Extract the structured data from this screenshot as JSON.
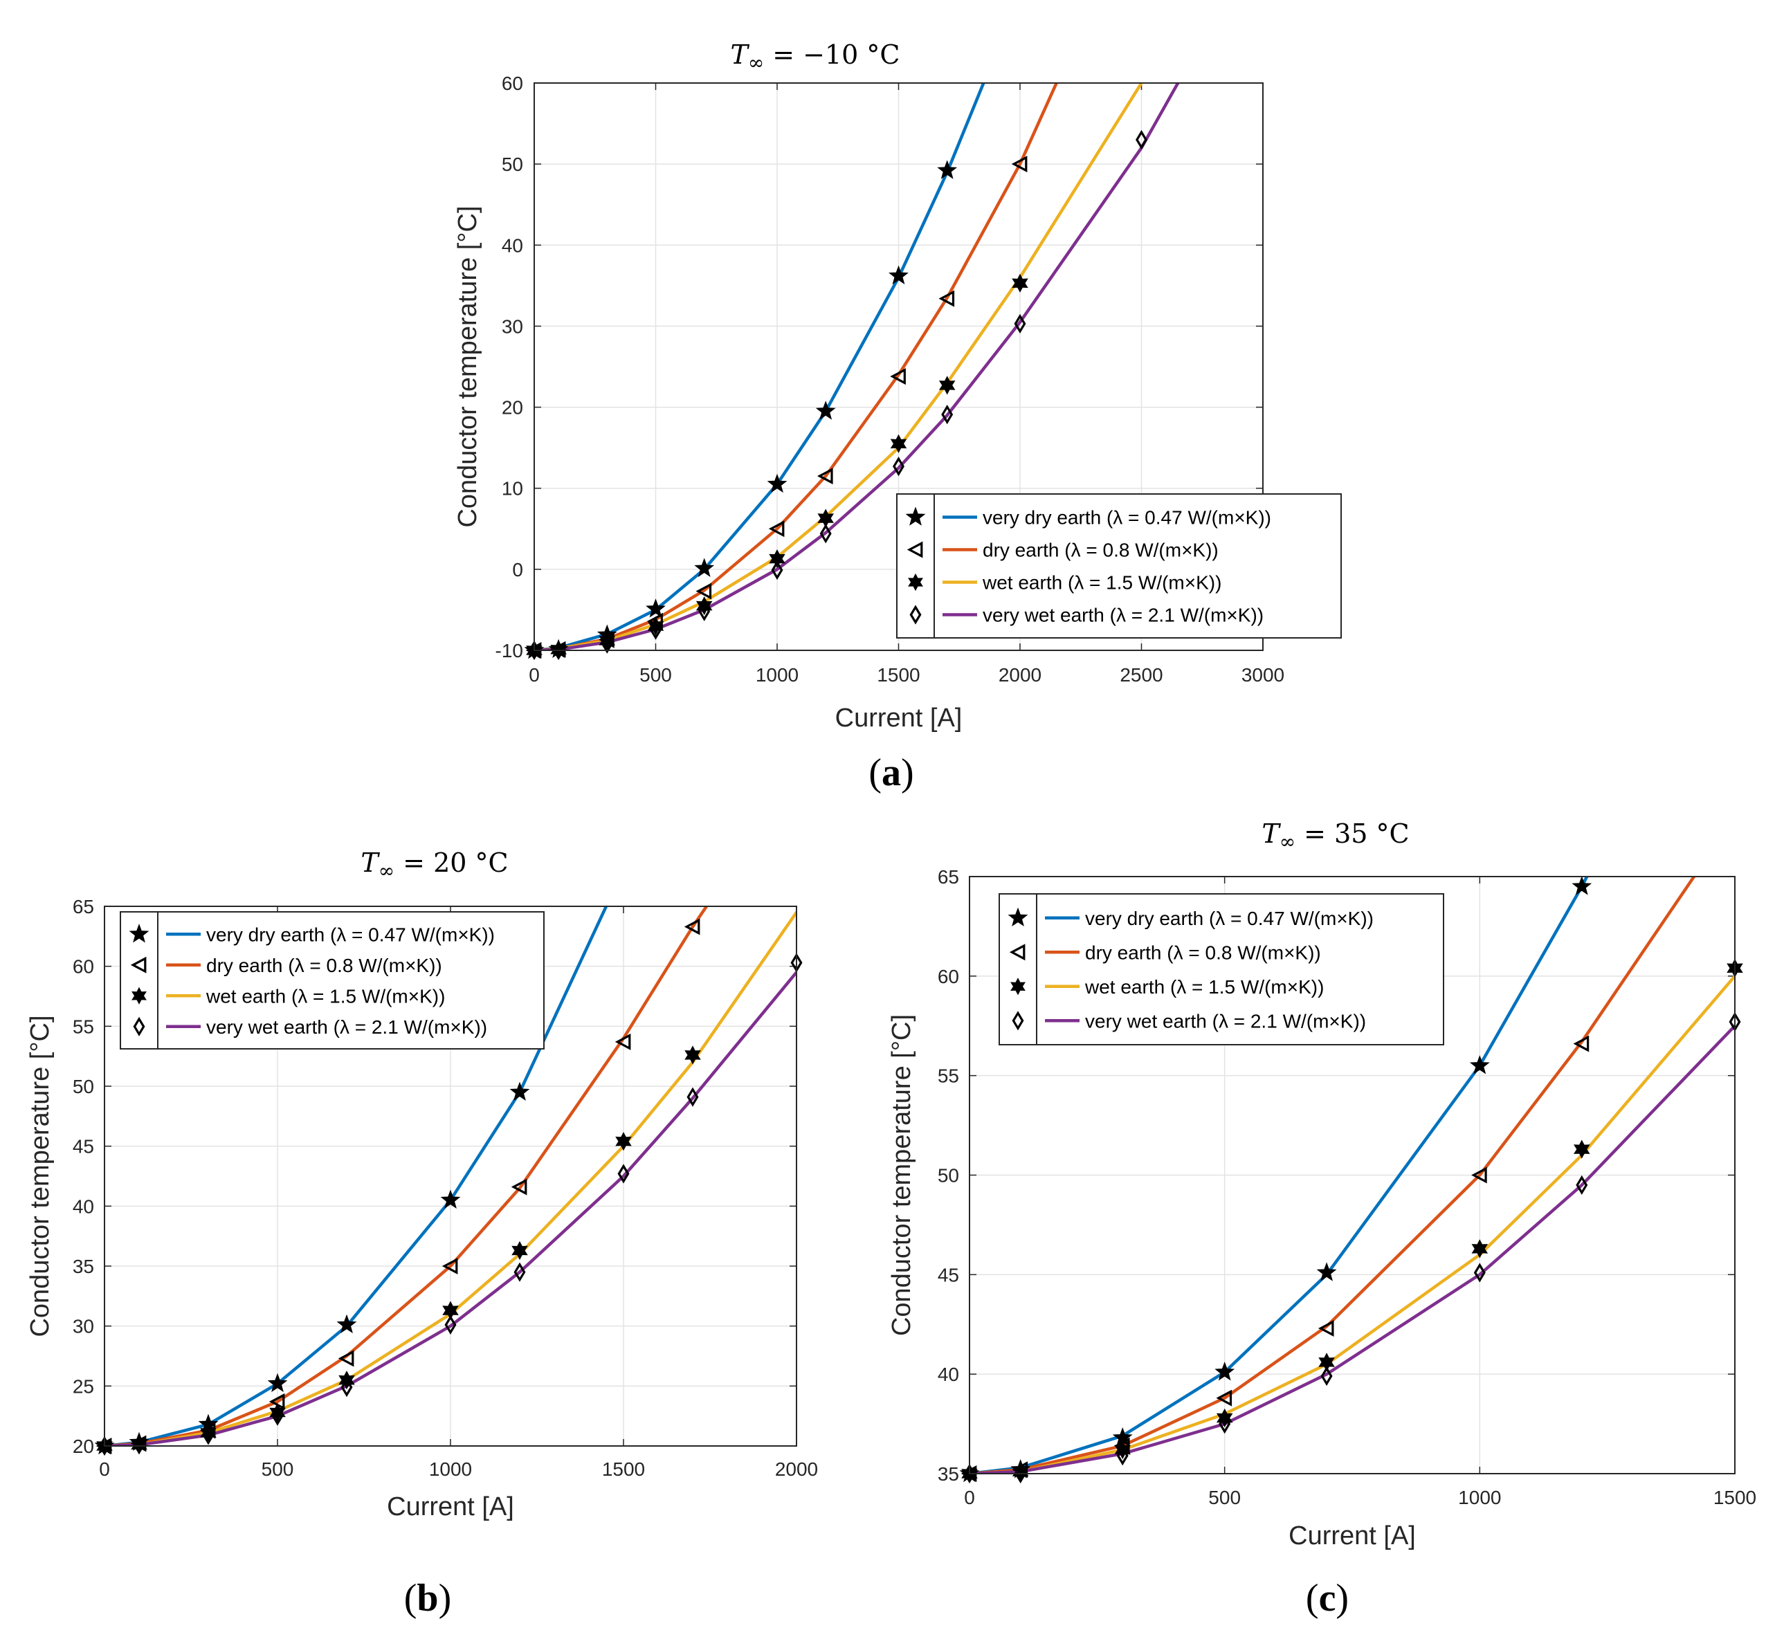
{
  "chart_data": [
    {
      "type": "line",
      "caption_open": "(",
      "caption_letter": "a",
      "caption_close": ")",
      "title_prefix": "T",
      "title_sub": "∞",
      "title_value": " = −10 °C",
      "xlabel": "Current [A]",
      "ylabel": "Conductor temperature [°C]",
      "xlim": [
        0,
        3000
      ],
      "ylim": [
        -10,
        60
      ],
      "xticks": [
        0,
        500,
        1000,
        1500,
        2000,
        2500,
        3000
      ],
      "yticks": [
        -10,
        0,
        10,
        20,
        30,
        40,
        50,
        60
      ],
      "xtick_labels": [
        "0",
        "500",
        "1000",
        "1500",
        "2000",
        "2500",
        "3000"
      ],
      "ytick_labels": [
        "-10",
        "0",
        "10",
        "20",
        "30",
        "40",
        "50",
        "60"
      ],
      "grid": true,
      "legend_position": "bottom-right",
      "series": [
        {
          "name": "very dry earth (λ = 0.47 W/(m×K))",
          "color": "#0072BD",
          "marker": "star5",
          "line_x": [
            0,
            100,
            300,
            500,
            700,
            1000,
            1200,
            1500,
            1700,
            1850
          ],
          "line_y": [
            -10,
            -9.7,
            -8,
            -5,
            0,
            10.5,
            19.5,
            36,
            49,
            60
          ],
          "marker_x": [
            0,
            100,
            300,
            500,
            700,
            1000,
            1200,
            1500,
            1700
          ],
          "marker_y": [
            -10,
            -9.9,
            -8.1,
            -4.9,
            0.1,
            10.5,
            19.5,
            36.2,
            49.2
          ]
        },
        {
          "name": "dry earth (λ = 0.8 W/(m×K))",
          "color": "#D95319",
          "marker": "triangle-left",
          "line_x": [
            0,
            100,
            300,
            500,
            700,
            1000,
            1200,
            1500,
            1700,
            2000,
            2150
          ],
          "line_y": [
            -10,
            -9.8,
            -8.6,
            -6.2,
            -2.6,
            5,
            11.5,
            24,
            33.5,
            50,
            60
          ],
          "marker_x": [
            0,
            100,
            300,
            500,
            700,
            1000,
            1200,
            1500,
            1700,
            2000
          ],
          "marker_y": [
            -10,
            -9.9,
            -8.7,
            -6.4,
            -2.7,
            5,
            11.5,
            23.8,
            33.4,
            50
          ]
        },
        {
          "name": "wet earth (λ = 1.5 W/(m×K))",
          "color": "#EDB120",
          "marker": "star6",
          "line_x": [
            0,
            100,
            300,
            500,
            700,
            1000,
            1200,
            1500,
            1700,
            2000,
            2500
          ],
          "line_y": [
            -10,
            -9.8,
            -8.8,
            -6.8,
            -4,
            1.5,
            6.5,
            15,
            23,
            36,
            60
          ],
          "marker_x": [
            0,
            100,
            300,
            500,
            700,
            1000,
            1200,
            1500,
            1700,
            2000
          ],
          "marker_y": [
            -10,
            -9.9,
            -8.8,
            -7,
            -4.5,
            1.3,
            6.3,
            15.5,
            22.7,
            35.3
          ]
        },
        {
          "name": "very wet earth (λ = 2.1 W/(m×K))",
          "color": "#7E2F8E",
          "marker": "diamond",
          "line_x": [
            0,
            100,
            300,
            500,
            700,
            1000,
            1200,
            1500,
            1700,
            2000,
            2500,
            2650
          ],
          "line_y": [
            -10,
            -9.9,
            -9,
            -7.4,
            -5,
            0,
            4.5,
            12.5,
            19,
            30.5,
            52,
            60
          ],
          "marker_x": [
            0,
            100,
            300,
            500,
            700,
            1000,
            1200,
            1500,
            1700,
            2000,
            2500
          ],
          "marker_y": [
            -10,
            -10,
            -9.2,
            -7.5,
            -5.2,
            -0.1,
            4.4,
            12.7,
            19.1,
            30.3,
            53
          ]
        }
      ]
    },
    {
      "type": "line",
      "caption_open": "(",
      "caption_letter": "b",
      "caption_close": ")",
      "title_prefix": "T",
      "title_sub": "∞",
      "title_value": " = 20 °C",
      "xlabel": "Current [A]",
      "ylabel": "Conductor temperature [°C]",
      "xlim": [
        0,
        2000
      ],
      "ylim": [
        20,
        65
      ],
      "xticks": [
        0,
        500,
        1000,
        1500,
        2000
      ],
      "yticks": [
        20,
        25,
        30,
        35,
        40,
        45,
        50,
        55,
        60,
        65
      ],
      "xtick_labels": [
        "0",
        "500",
        "1000",
        "1500",
        "2000"
      ],
      "ytick_labels": [
        "20",
        "25",
        "30",
        "35",
        "40",
        "45",
        "50",
        "55",
        "60",
        "65"
      ],
      "grid": true,
      "legend_position": "top-left",
      "series": [
        {
          "name": "very dry earth (λ = 0.47 W/(m×K))",
          "color": "#0072BD",
          "marker": "star5",
          "line_x": [
            0,
            100,
            300,
            500,
            700,
            1000,
            1200,
            1450
          ],
          "line_y": [
            20,
            20.3,
            21.8,
            25.2,
            30,
            40.5,
            49.5,
            65
          ],
          "marker_x": [
            0,
            100,
            300,
            500,
            700,
            1000,
            1200
          ],
          "marker_y": [
            20,
            20.3,
            21.8,
            25.2,
            30.1,
            40.5,
            49.5
          ]
        },
        {
          "name": "dry earth (λ = 0.8 W/(m×K))",
          "color": "#D95319",
          "marker": "triangle-left",
          "line_x": [
            0,
            100,
            300,
            500,
            700,
            1000,
            1200,
            1500,
            1700,
            1740
          ],
          "line_y": [
            20,
            20.2,
            21.3,
            23.7,
            27.5,
            35,
            41.5,
            54,
            63.3,
            65
          ],
          "marker_x": [
            0,
            100,
            300,
            500,
            700,
            1000,
            1200,
            1500,
            1700
          ],
          "marker_y": [
            20,
            20.2,
            21.3,
            23.7,
            27.3,
            35,
            41.6,
            53.7,
            63.3
          ]
        },
        {
          "name": "wet earth (λ = 1.5 W/(m×K))",
          "color": "#EDB120",
          "marker": "star6",
          "line_x": [
            0,
            100,
            300,
            500,
            700,
            1000,
            1200,
            1500,
            1700,
            2000
          ],
          "line_y": [
            20,
            20.1,
            21.1,
            22.9,
            25.5,
            31,
            36,
            45,
            52,
            64.5
          ],
          "marker_x": [
            0,
            100,
            300,
            500,
            700,
            1000,
            1200,
            1500,
            1700
          ],
          "marker_y": [
            20,
            20.1,
            21.1,
            22.8,
            25.5,
            31.3,
            36.3,
            45.4,
            52.6
          ]
        },
        {
          "name": "very wet earth (λ = 2.1 W/(m×K))",
          "color": "#7E2F8E",
          "marker": "diamond",
          "line_x": [
            0,
            100,
            300,
            500,
            700,
            1000,
            1200,
            1500,
            1700,
            2000
          ],
          "line_y": [
            20,
            20.1,
            20.9,
            22.5,
            25,
            30,
            34.5,
            42.5,
            49,
            59.5
          ],
          "marker_x": [
            0,
            100,
            300,
            500,
            700,
            1000,
            1200,
            1500,
            1700,
            2000
          ],
          "marker_y": [
            20,
            20.1,
            20.9,
            22.5,
            24.9,
            30.1,
            34.5,
            42.7,
            49.1,
            60.3
          ]
        }
      ]
    },
    {
      "type": "line",
      "caption_open": "(",
      "caption_letter": "c",
      "caption_close": ")",
      "title_prefix": "T",
      "title_sub": "∞",
      "title_value": " = 35 °C",
      "xlabel": "Current [A]",
      "ylabel": "Conductor temperature [°C]",
      "xlim": [
        0,
        1500
      ],
      "ylim": [
        35,
        65
      ],
      "xticks": [
        0,
        500,
        1000,
        1500
      ],
      "yticks": [
        35,
        40,
        45,
        50,
        55,
        60,
        65
      ],
      "xtick_labels": [
        "0",
        "500",
        "1000",
        "1500"
      ],
      "ytick_labels": [
        "35",
        "40",
        "45",
        "50",
        "55",
        "60",
        "65"
      ],
      "grid": true,
      "legend_position": "top-left",
      "series": [
        {
          "name": "very dry earth (λ = 0.47 W/(m×K))",
          "color": "#0072BD",
          "marker": "star5",
          "line_x": [
            0,
            100,
            300,
            500,
            700,
            1000,
            1200,
            1210
          ],
          "line_y": [
            35,
            35.3,
            36.9,
            40.1,
            45,
            55.5,
            64.5,
            65
          ],
          "marker_x": [
            0,
            100,
            300,
            500,
            700,
            1000,
            1200
          ],
          "marker_y": [
            35,
            35.2,
            36.8,
            40.1,
            45.1,
            55.5,
            64.5
          ]
        },
        {
          "name": "dry earth (λ = 0.8 W/(m×K))",
          "color": "#D95319",
          "marker": "triangle-left",
          "line_x": [
            0,
            100,
            300,
            500,
            700,
            1000,
            1200,
            1420
          ],
          "line_y": [
            35,
            35.2,
            36.4,
            38.8,
            42.4,
            50,
            56.7,
            65
          ],
          "marker_x": [
            0,
            100,
            300,
            500,
            700,
            1000,
            1200
          ],
          "marker_y": [
            35,
            35.2,
            36.4,
            38.8,
            42.3,
            50,
            56.6
          ]
        },
        {
          "name": "wet earth (λ = 1.5 W/(m×K))",
          "color": "#EDB120",
          "marker": "star6",
          "line_x": [
            0,
            100,
            300,
            500,
            700,
            1000,
            1200,
            1500
          ],
          "line_y": [
            35,
            35.1,
            36.2,
            38,
            40.5,
            46,
            51,
            60
          ],
          "marker_x": [
            0,
            100,
            300,
            500,
            700,
            1000,
            1200,
            1500
          ],
          "marker_y": [
            35,
            35.1,
            36.2,
            37.8,
            40.6,
            46.3,
            51.3,
            60.4
          ]
        },
        {
          "name": "very wet earth (λ = 2.1 W/(m×K))",
          "color": "#7E2F8E",
          "marker": "diamond",
          "line_x": [
            0,
            100,
            300,
            500,
            700,
            1000,
            1200,
            1500
          ],
          "line_y": [
            35,
            35.1,
            36,
            37.5,
            40,
            45,
            49.5,
            57.5
          ],
          "marker_x": [
            0,
            100,
            300,
            500,
            700,
            1000,
            1200,
            1500
          ],
          "marker_y": [
            35,
            35,
            35.9,
            37.5,
            39.9,
            45.1,
            49.5,
            57.7
          ]
        }
      ]
    }
  ]
}
